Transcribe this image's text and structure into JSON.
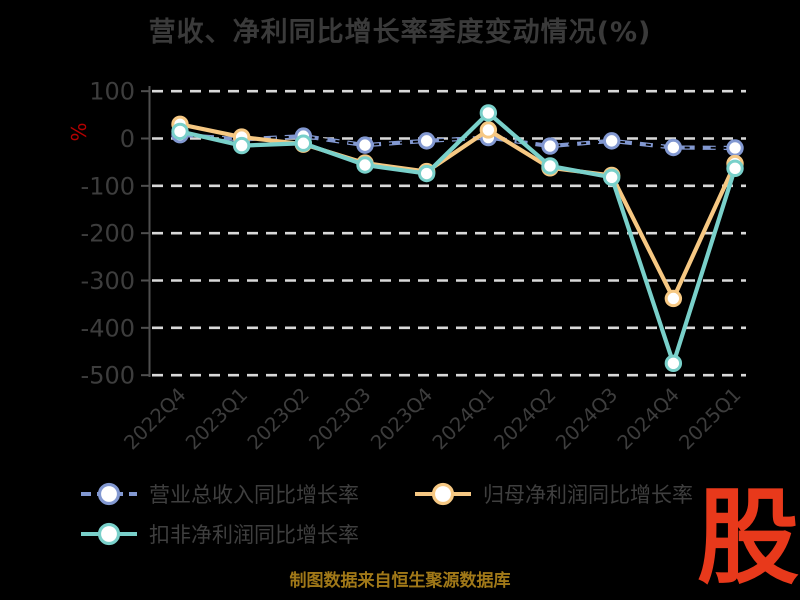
{
  "title": "营收、净利同比增长率季度变动情况(%)",
  "ylabel": "%",
  "footer": "制图数据来自恒生聚源数据库",
  "logo_text": "股",
  "colors": {
    "background": "#000000",
    "title": "#3a3a3a",
    "axis": "#4f4f4f",
    "grid": "#d9d9d9",
    "tick_label": "#3d3d3d",
    "ylabel": "#b30000",
    "footer": "#a07818",
    "logo": "#e8391b",
    "marker_fill": "#ffffff",
    "revenue": "#8298d1",
    "net_profit": "#f6c883",
    "non_gaap": "#79d0ca"
  },
  "legend": [
    {
      "label": "营业总收入同比增长率",
      "series": "revenue"
    },
    {
      "label": "归母净利润同比增长率",
      "series": "net_profit"
    },
    {
      "label": "扣非净利润同比增长率",
      "series": "non_gaap"
    }
  ],
  "chart_data": {
    "type": "line",
    "categories": [
      "2022Q4",
      "2023Q1",
      "2023Q2",
      "2023Q3",
      "2023Q4",
      "2024Q1",
      "2024Q2",
      "2024Q3",
      "2024Q4",
      "2025Q1"
    ],
    "series": [
      {
        "name": "营业总收入同比增长率",
        "key": "revenue",
        "style": "dashed",
        "values": [
          8,
          -2,
          5,
          -14,
          -5,
          2,
          -16,
          -5,
          -19,
          -20
        ]
      },
      {
        "name": "归母净利润同比增长率",
        "key": "net_profit",
        "style": "solid",
        "values": [
          30,
          3,
          -12,
          -52,
          -70,
          18,
          -62,
          -78,
          -338,
          -53
        ]
      },
      {
        "name": "扣非净利润同比增长率",
        "key": "non_gaap",
        "style": "solid",
        "values": [
          15,
          -15,
          -10,
          -56,
          -74,
          54,
          -58,
          -82,
          -475,
          -63
        ]
      }
    ],
    "yticks": [
      100,
      0,
      -100,
      -200,
      -300,
      -400,
      -500
    ],
    "ylim": [
      -520,
      115
    ],
    "xlabel_rotation": 45,
    "grid": "horizontal-dashed",
    "legend_position": "bottom-left"
  }
}
